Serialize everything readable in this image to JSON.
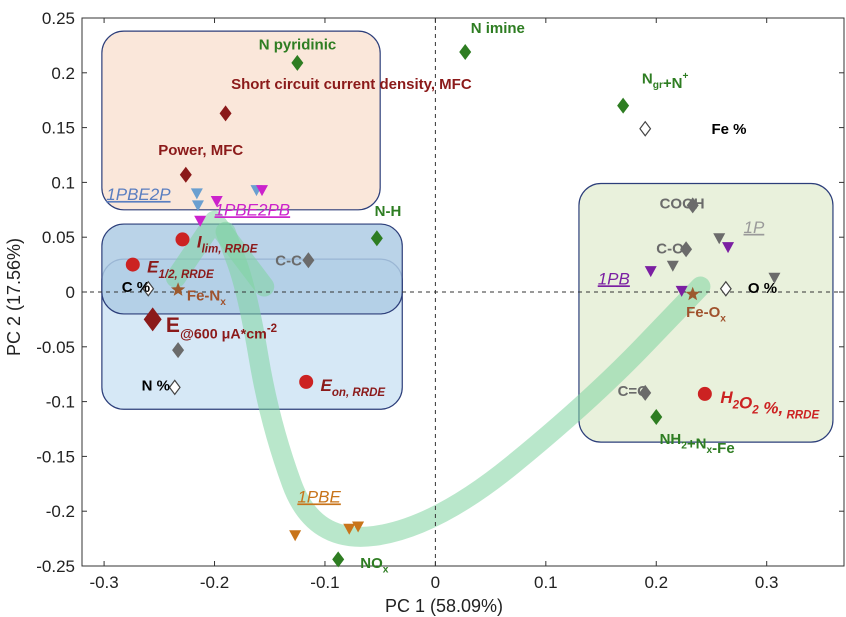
{
  "chart_data": {
    "type": "scatter",
    "xlabel": "PC 1 (58.09%)",
    "ylabel": "PC 2 (17.56%)",
    "xlim": [
      -0.32,
      0.37
    ],
    "ylim": [
      -0.25,
      0.25
    ],
    "xticks": [
      "-0.3",
      "-0.2",
      "-0.1",
      "0",
      "0.1",
      "0.2",
      "0.3"
    ],
    "yticks": [
      "-0.25",
      "-0.2",
      "-0.15",
      "-0.1",
      "-0.05",
      "0",
      "0.05",
      "0.1",
      "0.15",
      "0.2",
      "0.25"
    ],
    "colors": {
      "green": "#2e7d22",
      "darkred": "#8b1a1a",
      "red": "#cc2222",
      "gray": "#6b6b6b",
      "magenta": "#cc22cc",
      "purple": "#7b1fa2",
      "orange": "#c8741a",
      "blue": "#6a9fd0",
      "brown": "#a0522d",
      "star": "#9c5a2e"
    },
    "regions": [
      {
        "name": "peach-box",
        "x0": -0.302,
        "x1": -0.05,
        "y0": 0.075,
        "y1": 0.238,
        "fill": "#f9e3d3"
      },
      {
        "name": "light-blue-box",
        "x0": -0.302,
        "x1": -0.03,
        "y0": -0.107,
        "y1": 0.03,
        "fill": "#cfe4f5"
      },
      {
        "name": "mid-blue-box",
        "x0": -0.302,
        "x1": -0.03,
        "y0": -0.02,
        "y1": 0.062,
        "fill": "#aecbe4"
      },
      {
        "name": "green-box",
        "x0": 0.13,
        "x1": 0.36,
        "y0": -0.137,
        "y1": 0.099,
        "fill": "#e5efd6"
      }
    ],
    "points": [
      {
        "x": -0.125,
        "y": 0.209,
        "shape": "diamond",
        "color": "green",
        "label": "N pyridinic",
        "dx": -0.035,
        "dy": 0.017,
        "fontSize": 15,
        "labelColor": "green"
      },
      {
        "x": 0.027,
        "y": 0.219,
        "shape": "diamond",
        "color": "green",
        "label": "N imine",
        "dx": 0.005,
        "dy": 0.022,
        "fontSize": 15,
        "labelColor": "green"
      },
      {
        "x": 0.17,
        "y": 0.17,
        "shape": "diamond",
        "color": "green",
        "label": "Ngr+N+",
        "dx": 0.017,
        "dy": 0.025,
        "fontSize": 15,
        "labelColor": "green"
      },
      {
        "x": 0.19,
        "y": 0.149,
        "shape": "hollow-diamond",
        "color": "gray",
        "label": "Fe %",
        "dx": 0.06,
        "dy": 0.0,
        "fontSize": 15,
        "labelColor": "black"
      },
      {
        "x": -0.19,
        "y": 0.163,
        "shape": "diamond",
        "color": "darkred",
        "label": "Short circuit current density, MFC",
        "dx": 0.005,
        "dy": 0.027,
        "fontSize": 15,
        "labelColor": "darkred"
      },
      {
        "x": -0.226,
        "y": 0.107,
        "shape": "diamond",
        "color": "darkred",
        "label": "Power, MFC",
        "dx": -0.025,
        "dy": 0.023,
        "fontSize": 15,
        "labelColor": "darkred"
      },
      {
        "x": -0.053,
        "y": 0.049,
        "shape": "diamond",
        "color": "green",
        "label": "N-H",
        "dx": -0.002,
        "dy": 0.025,
        "fontSize": 15,
        "labelColor": "green"
      },
      {
        "x": -0.115,
        "y": 0.029,
        "shape": "diamond",
        "color": "gray",
        "label": "C-C",
        "dx": -0.03,
        "dy": 0.0,
        "fontSize": 15,
        "labelColor": "gray"
      },
      {
        "x": -0.26,
        "y": 0.003,
        "shape": "hollow-diamond",
        "color": "gray",
        "label": "C %",
        "dx": -0.024,
        "dy": 0.002,
        "fontSize": 15,
        "labelColor": "black"
      },
      {
        "x": -0.233,
        "y": -0.053,
        "shape": "diamond",
        "color": "gray",
        "label": "",
        "dx": 0.0,
        "dy": 0.0,
        "fontSize": 15,
        "labelColor": "gray"
      },
      {
        "x": -0.236,
        "y": -0.087,
        "shape": "hollow-diamond",
        "color": "gray",
        "label": "N %",
        "dx": -0.03,
        "dy": 0.002,
        "fontSize": 15,
        "labelColor": "black"
      },
      {
        "x": 0.233,
        "y": 0.079,
        "shape": "diamond",
        "color": "gray",
        "label": "COOH",
        "dx": -0.03,
        "dy": 0.002,
        "fontSize": 15,
        "labelColor": "gray"
      },
      {
        "x": 0.227,
        "y": 0.039,
        "shape": "diamond",
        "color": "gray",
        "label": "C-O",
        "dx": -0.027,
        "dy": 0.001,
        "fontSize": 15,
        "labelColor": "gray"
      },
      {
        "x": 0.19,
        "y": -0.092,
        "shape": "diamond",
        "color": "gray",
        "label": "C=O",
        "dx": -0.025,
        "dy": 0.002,
        "fontSize": 15,
        "labelColor": "gray"
      },
      {
        "x": 0.2,
        "y": -0.114,
        "shape": "diamond",
        "color": "green",
        "label": "NH2+Nx-Fe",
        "dx": 0.003,
        "dy": -0.02,
        "fontSize": 15,
        "labelColor": "green"
      },
      {
        "x": -0.088,
        "y": -0.244,
        "shape": "diamond",
        "color": "green",
        "label": "NOx",
        "dx": 0.02,
        "dy": -0.003,
        "fontSize": 15,
        "labelColor": "green"
      },
      {
        "x": 0.263,
        "y": 0.003,
        "shape": "hollow-diamond",
        "color": "gray",
        "label": "O %",
        "dx": 0.02,
        "dy": 0.001,
        "fontSize": 15,
        "labelColor": "black"
      },
      {
        "x": 0.307,
        "y": 0.013,
        "shape": "tri",
        "color": "gray",
        "label": "",
        "dx": 0.0,
        "dy": 0.0,
        "fontSize": 15,
        "labelColor": "gray"
      },
      {
        "x": 0.257,
        "y": 0.049,
        "shape": "tri",
        "color": "gray",
        "label": "",
        "dx": 0.0,
        "dy": 0.0,
        "fontSize": 15,
        "labelColor": "gray"
      },
      {
        "x": 0.215,
        "y": 0.024,
        "shape": "tri",
        "color": "gray",
        "label": "",
        "dx": 0.0,
        "dy": 0.0,
        "fontSize": 15,
        "labelColor": "gray"
      },
      {
        "x": 0.265,
        "y": 0.041,
        "shape": "tri",
        "color": "purple",
        "label": "",
        "dx": 0.0,
        "dy": 0.0,
        "fontSize": 15,
        "labelColor": "purple"
      },
      {
        "x": 0.195,
        "y": 0.019,
        "shape": "tri",
        "color": "purple",
        "label": "",
        "dx": 0.0,
        "dy": 0.0,
        "fontSize": 15,
        "labelColor": "purple"
      },
      {
        "x": 0.223,
        "y": 0.001,
        "shape": "tri",
        "color": "purple",
        "label": "",
        "dx": 0.0,
        "dy": 0.0,
        "fontSize": 15,
        "labelColor": "purple"
      },
      {
        "x": -0.216,
        "y": 0.09,
        "shape": "tri",
        "color": "blue",
        "label": "",
        "dx": 0.0,
        "dy": 0.0,
        "fontSize": 15,
        "labelColor": "blue"
      },
      {
        "x": -0.215,
        "y": 0.079,
        "shape": "tri",
        "color": "blue",
        "label": "",
        "dx": 0.0,
        "dy": 0.0,
        "fontSize": 15,
        "labelColor": "blue"
      },
      {
        "x": -0.162,
        "y": 0.093,
        "shape": "tri",
        "color": "blue",
        "label": "",
        "dx": 0.0,
        "dy": 0.0,
        "fontSize": 15,
        "labelColor": "blue"
      },
      {
        "x": -0.157,
        "y": 0.093,
        "shape": "tri",
        "color": "magenta",
        "label": "",
        "dx": 0.0,
        "dy": 0.0,
        "fontSize": 15,
        "labelColor": "magenta"
      },
      {
        "x": -0.198,
        "y": 0.083,
        "shape": "tri",
        "color": "magenta",
        "label": "",
        "dx": 0.0,
        "dy": 0.0,
        "fontSize": 15,
        "labelColor": "magenta"
      },
      {
        "x": -0.213,
        "y": 0.065,
        "shape": "tri",
        "color": "magenta",
        "label": "",
        "dx": 0.0,
        "dy": 0.0,
        "fontSize": 15,
        "labelColor": "magenta"
      },
      {
        "x": -0.127,
        "y": -0.222,
        "shape": "tri",
        "color": "orange",
        "label": "",
        "dx": 0.0,
        "dy": 0.0,
        "fontSize": 15,
        "labelColor": "orange"
      },
      {
        "x": -0.078,
        "y": -0.216,
        "shape": "tri",
        "color": "orange",
        "label": "",
        "dx": 0.0,
        "dy": 0.0,
        "fontSize": 15,
        "labelColor": "orange"
      },
      {
        "x": -0.07,
        "y": -0.214,
        "shape": "tri",
        "color": "orange",
        "label": "",
        "dx": 0.0,
        "dy": 0.0,
        "fontSize": 15,
        "labelColor": "orange"
      },
      {
        "x": -0.233,
        "y": 0.002,
        "shape": "star",
        "color": "star",
        "label": "Fe-Nx",
        "dx": 0.008,
        "dy": -0.005,
        "fontSize": 15,
        "labelColor": "brown"
      },
      {
        "x": 0.233,
        "y": -0.002,
        "shape": "star",
        "color": "star",
        "label": "Fe-Ox",
        "dx": -0.006,
        "dy": -0.016,
        "fontSize": 15,
        "labelColor": "brown"
      },
      {
        "x": -0.229,
        "y": 0.048,
        "shape": "circle",
        "color": "red",
        "label": "Ilim, RRDE",
        "dx": 0.013,
        "dy": -0.002,
        "fontSize": 17,
        "labelColor": "darkred"
      },
      {
        "x": -0.274,
        "y": 0.025,
        "shape": "circle",
        "color": "red",
        "label": "E1/2, RRDE",
        "dx": 0.013,
        "dy": -0.002,
        "fontSize": 17,
        "labelColor": "darkred"
      },
      {
        "x": -0.117,
        "y": -0.082,
        "shape": "circle",
        "color": "red",
        "label": "Eon, RRDE",
        "dx": 0.013,
        "dy": -0.003,
        "fontSize": 17,
        "labelColor": "darkred"
      },
      {
        "x": 0.244,
        "y": -0.093,
        "shape": "circle",
        "color": "red",
        "label": "H2O2 %, RRDE",
        "dx": 0.014,
        "dy": -0.003,
        "fontSize": 17,
        "labelColor": "red"
      },
      {
        "x": -0.256,
        "y": -0.025,
        "shape": "big-diamond",
        "color": "darkred",
        "label": "E@600 μA*cm-2",
        "dx": 0.012,
        "dy": -0.005,
        "fontSize": 21,
        "labelColor": "darkred"
      }
    ],
    "sample_labels": [
      {
        "text": "1PBE2P",
        "x": -0.298,
        "y": 0.084,
        "color": "#5a7ec0"
      },
      {
        "text": "1PBE2PB",
        "x": -0.2,
        "y": 0.07,
        "color": "#cc22cc"
      },
      {
        "text": "1P",
        "x": 0.279,
        "y": 0.054,
        "color": "#9a9a9a"
      },
      {
        "text": "1PB",
        "x": 0.147,
        "y": 0.007,
        "color": "#7b1fa2"
      },
      {
        "text": "1PBE",
        "x": -0.125,
        "y": -0.192,
        "color": "#c8741a"
      }
    ],
    "arrow": {
      "color": "#7fd3a0",
      "path": [
        [
          0.24,
          0.005
        ],
        [
          0.14,
          -0.1
        ],
        [
          0.0,
          -0.215
        ],
        [
          -0.11,
          -0.23
        ],
        [
          -0.15,
          -0.12
        ],
        [
          -0.17,
          0.0
        ],
        [
          -0.19,
          0.055
        ]
      ],
      "head_from": [
        -0.155,
        0.005
      ],
      "head_to": [
        -0.2,
        0.065
      ],
      "head_back": [
        -0.235,
        0.013
      ]
    }
  }
}
